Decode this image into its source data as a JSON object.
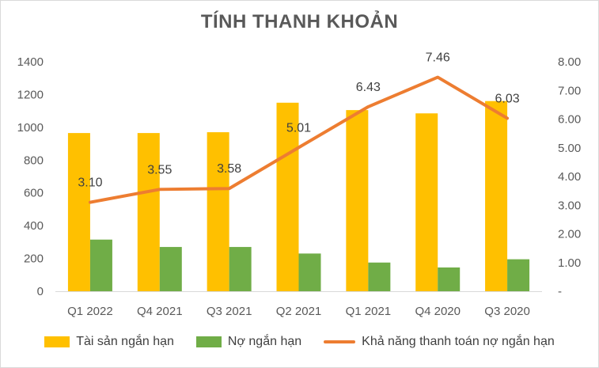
{
  "chart_data": {
    "type": "bar",
    "title": "TÍNH THANH KHOẢN",
    "categories": [
      "Q1 2022",
      "Q4 2021",
      "Q3 2021",
      "Q2 2021",
      "Q1 2021",
      "Q4 2020",
      "Q3 2020"
    ],
    "series": [
      {
        "name": "Tài sản ngắn hạn",
        "type": "bar",
        "axis": "left",
        "color": "#FFC000",
        "values": [
          965,
          965,
          970,
          1150,
          1105,
          1085,
          1160
        ]
      },
      {
        "name": "Nợ ngắn hạn",
        "type": "bar",
        "axis": "left",
        "color": "#70AD47",
        "values": [
          315,
          270,
          270,
          230,
          175,
          145,
          195
        ]
      },
      {
        "name": "Khả năng thanh toán nợ ngắn hạn",
        "type": "line",
        "axis": "right",
        "color": "#ED7D31",
        "values": [
          3.1,
          3.55,
          3.58,
          5.01,
          6.43,
          7.46,
          6.03
        ],
        "labels": [
          "3.10",
          "3.55",
          "3.58",
          "5.01",
          "6.43",
          "7.46",
          "6.03"
        ]
      }
    ],
    "y_left": {
      "ylim": [
        0,
        1400
      ],
      "ticks": [
        "0",
        "200",
        "400",
        "600",
        "800",
        "1000",
        "1200",
        "1400"
      ]
    },
    "y_right": {
      "ylim": [
        0,
        8
      ],
      "ticks": [
        "-",
        "1.00",
        "2.00",
        "3.00",
        "4.00",
        "5.00",
        "6.00",
        "7.00",
        "8.00"
      ]
    },
    "grid": false,
    "legend_position": "bottom"
  }
}
